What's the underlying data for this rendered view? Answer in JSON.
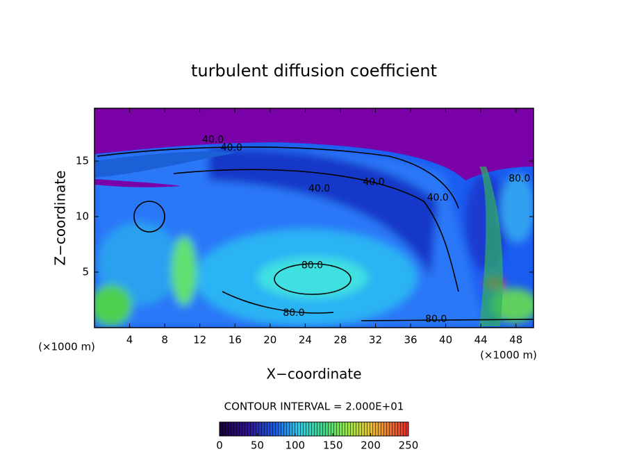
{
  "chart_data": {
    "type": "contour",
    "title": "turbulent diffusion coefficient",
    "xlabel": "X−coordinate",
    "ylabel": "Z−coordinate",
    "x_unit": "(×1000 m)",
    "x_unit_right": "(×1000 m)",
    "xlim": [
      0,
      50
    ],
    "ylim": [
      0,
      19.75
    ],
    "xticks": [
      4,
      8,
      12,
      16,
      20,
      24,
      28,
      32,
      36,
      40,
      44,
      48
    ],
    "yticks": [
      5,
      10,
      15
    ],
    "contour_interval_text": "CONTOUR INTERVAL = 2.000E+01",
    "contour_labels": [
      {
        "value": 40,
        "label": "40.0",
        "x": 13.5,
        "y": 16.9
      },
      {
        "value": 40,
        "label": "40.0",
        "x": 15.6,
        "y": 16.2
      },
      {
        "value": 40,
        "label": "40.0",
        "x": 25.6,
        "y": 12.5
      },
      {
        "value": 40,
        "label": "40.0",
        "x": 31.8,
        "y": 13.1
      },
      {
        "value": 40,
        "label": "40.0",
        "x": 39.1,
        "y": 11.7
      },
      {
        "value": 80,
        "label": "80.0",
        "x": 24.8,
        "y": 5.6
      },
      {
        "value": 80,
        "label": "80.0",
        "x": 22.7,
        "y": 1.3
      },
      {
        "value": 80,
        "label": "80.0",
        "x": 38.9,
        "y": 0.75
      },
      {
        "value": 80,
        "label": "80.0",
        "x": 48.4,
        "y": 13.4
      }
    ],
    "colorbar": {
      "lim": [
        0,
        250
      ],
      "ticks": [
        0,
        50,
        100,
        150,
        200,
        250
      ]
    }
  }
}
